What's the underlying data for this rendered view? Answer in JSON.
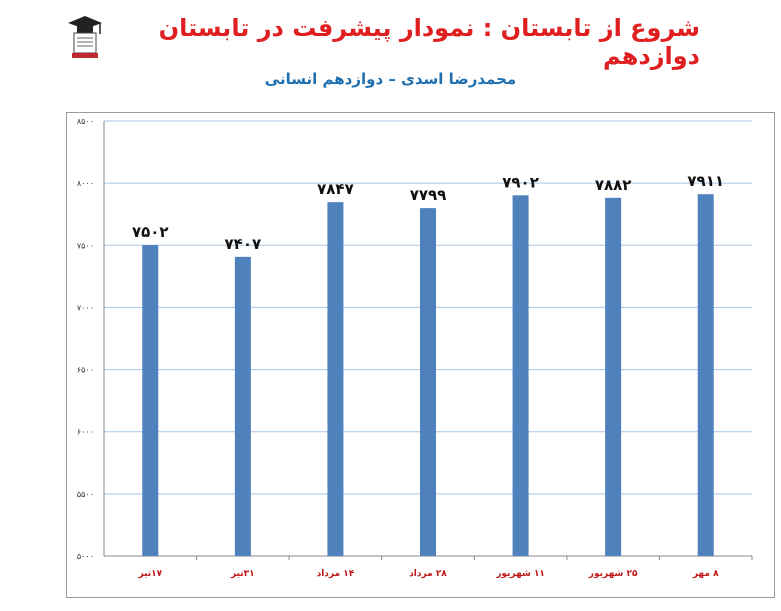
{
  "header": {
    "title": "شروع از تابستان : نمودار پیشرفت در تابستان دوازدهم",
    "subtitle": "محمدرضا اسدی  –  دوازدهم انسانی",
    "logo_icon": "graduate-logo-icon"
  },
  "colors": {
    "title": "#e02020",
    "subtitle": "#1f6fb0",
    "bar": "#4f81bd",
    "gridline": "#a9c4e2",
    "xtick": "#c01818"
  },
  "chart_data": {
    "type": "bar",
    "categories": [
      "۱۷تیر",
      "۳۱تیر",
      "۱۴ مرداد",
      "۲۸ مرداد",
      "۱۱ شهریور",
      "۲۵ شهریور",
      "۸ مهر"
    ],
    "values": [
      7502,
      7407,
      7847,
      7799,
      7902,
      7882,
      7911
    ],
    "data_labels": [
      "۷۵۰۲",
      "۷۴۰۷",
      "۷۸۴۷",
      "۷۷۹۹",
      "۷۹۰۲",
      "۷۸۸۲",
      "۷۹۱۱"
    ],
    "ylim": [
      5000,
      8500
    ],
    "yticks": [
      5000,
      5500,
      6000,
      6500,
      7000,
      7500,
      8000,
      8500
    ],
    "ytick_labels": [
      "۵۰۰۰",
      "۵۵۰۰",
      "۶۰۰۰",
      "۶۵۰۰",
      "۷۰۰۰",
      "۷۵۰۰",
      "۸۰۰۰",
      "۸۵۰۰"
    ],
    "grid": true,
    "legend": "none"
  }
}
